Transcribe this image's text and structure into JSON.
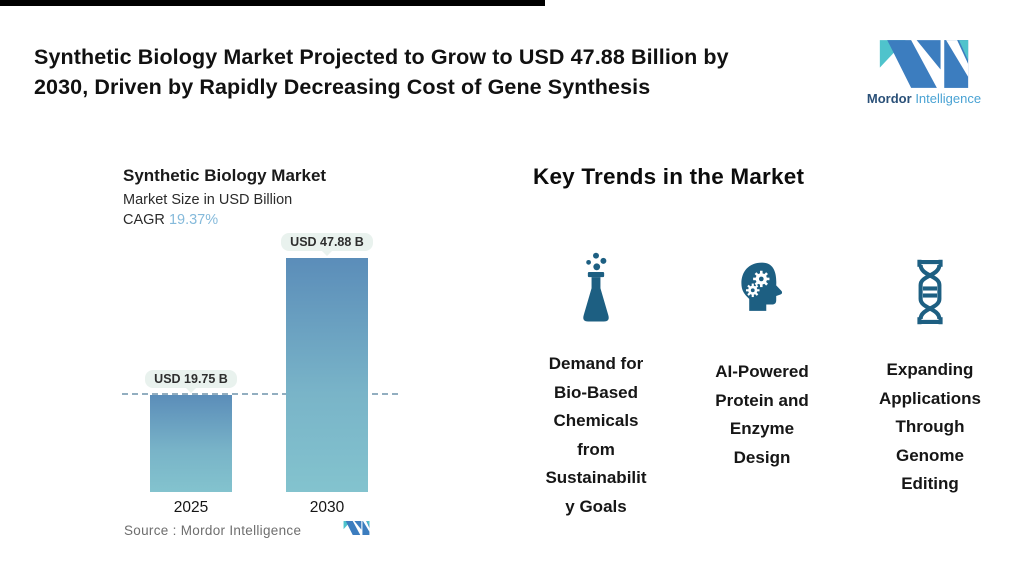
{
  "page": {
    "title": "Synthetic Biology Market Projected to Grow to USD 47.88 Billion by\n2030, Driven by Rapidly Decreasing Cost of Gene Synthesis"
  },
  "brand": {
    "name": "Mordor Intelligence",
    "wordmark_primary": "Mordor",
    "wordmark_secondary": "Intelligence"
  },
  "colors": {
    "icon_teal": "#1d5f82",
    "bar_gradient_top": "#5b8db9",
    "bar_gradient_bottom": "#83c3ce",
    "badge_background": "#e9f2ee",
    "cagr_blue": "#85badb",
    "brand_blue": "#3c7dbf",
    "brand_teal": "#4fc3cc"
  },
  "chart": {
    "title": "Synthetic Biology Market",
    "subtitle": "Market Size in USD Billion",
    "cagr_label": "CAGR",
    "cagr_value": "19.37%",
    "source_label": "Source :",
    "source_value": "Mordor Intelligence"
  },
  "chart_data": {
    "type": "bar",
    "title": "Synthetic Biology Market",
    "subtitle": "Market Size in USD Billion",
    "cagr": "19.37%",
    "categories": [
      "2025",
      "2030"
    ],
    "values": [
      19.75,
      47.88
    ],
    "value_labels": [
      "USD 19.75 B",
      "USD 47.88 B"
    ],
    "unit": "USD Billion",
    "ylim": [
      0,
      50
    ],
    "grid": false,
    "legend": "none",
    "reference_line": {
      "style": "dashed",
      "value": 19.75
    },
    "source": "Mordor Intelligence"
  },
  "trends": {
    "heading": "Key Trends in the Market",
    "items": [
      {
        "icon": "flask-icon",
        "label": "Demand for\nBio-Based\nChemicals\nfrom\nSustainabilit\ny Goals"
      },
      {
        "icon": "ai-head-gears-icon",
        "label": "AI-Powered\nProtein and\nEnzyme\nDesign"
      },
      {
        "icon": "dna-helix-icon",
        "label": "Expanding\nApplications\nThrough\nGenome\nEditing"
      }
    ]
  }
}
